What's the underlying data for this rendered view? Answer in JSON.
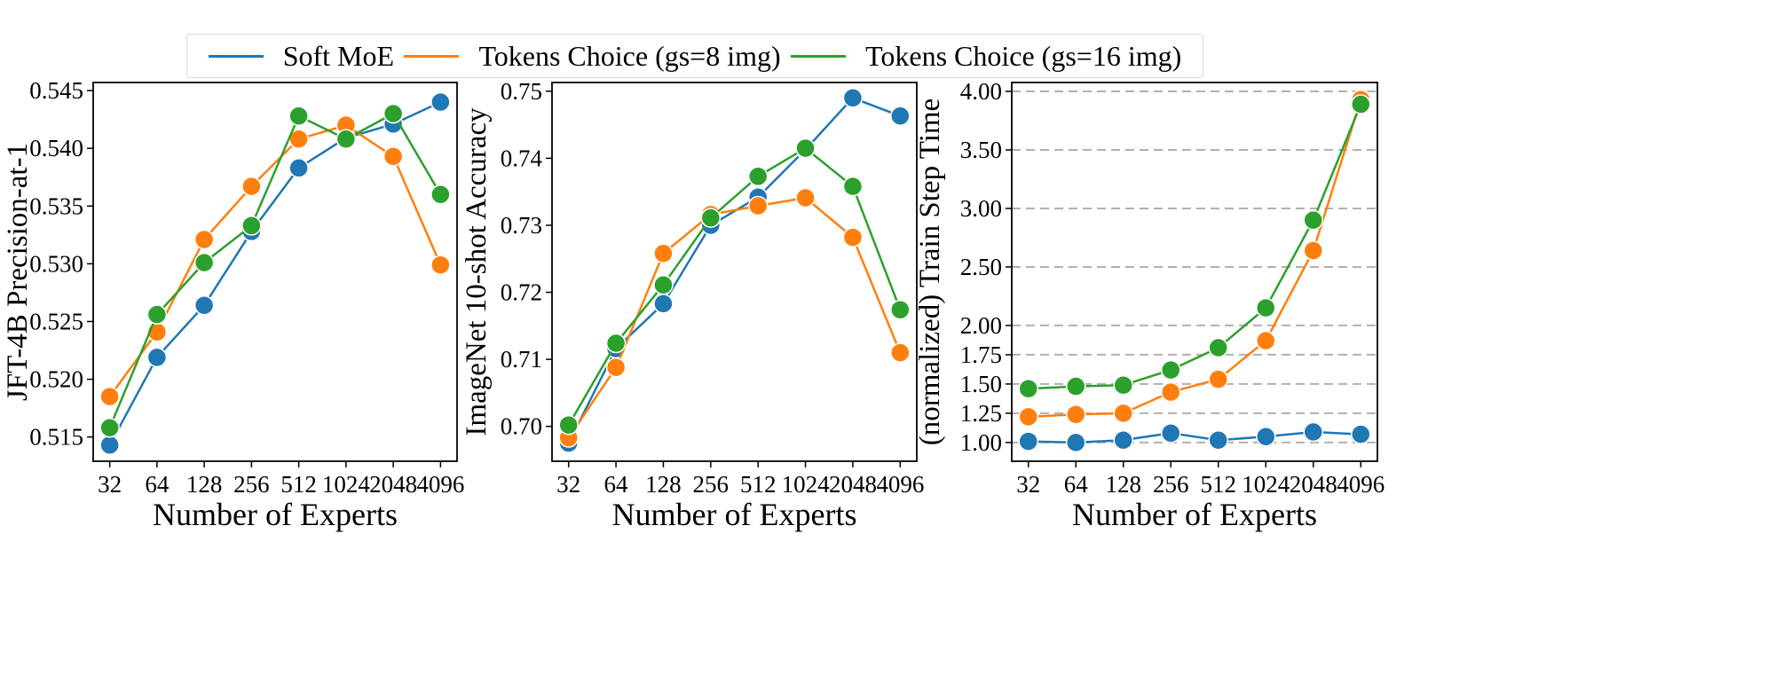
{
  "legend": {
    "placement": "top-center",
    "entries": [
      {
        "name": "Soft MoE",
        "color": "#1f77b4"
      },
      {
        "name": "Tokens Choice (gs=8 img)",
        "color": "#ff7f0e"
      },
      {
        "name": "Tokens Choice (gs=16 img)",
        "color": "#2ca02c"
      }
    ]
  },
  "chart_data": [
    {
      "type": "line",
      "xlabel": "Number of Experts",
      "ylabel": "JFT-4B Precision-at-1",
      "categories": [
        "32",
        "64",
        "128",
        "256",
        "512",
        "1024",
        "2048",
        "4096"
      ],
      "yticks": [
        "0.515",
        "0.520",
        "0.525",
        "0.530",
        "0.535",
        "0.540",
        "0.545"
      ],
      "ylim": [
        0.5129,
        0.5457
      ],
      "grid": false,
      "series": [
        {
          "name": "Soft MoE",
          "color": "#1f77b4",
          "values": [
            0.5143,
            0.5219,
            0.5264,
            0.5328,
            0.5383,
            0.5409,
            0.5421,
            0.544
          ]
        },
        {
          "name": "Tokens Choice (gs=8 img)",
          "color": "#ff7f0e",
          "values": [
            0.5185,
            0.5241,
            0.5321,
            0.5367,
            0.5408,
            0.542,
            0.5393,
            0.5299
          ]
        },
        {
          "name": "Tokens Choice (gs=16 img)",
          "color": "#2ca02c",
          "values": [
            0.5158,
            0.5256,
            0.5301,
            0.5333,
            0.5428,
            0.5408,
            0.543,
            0.536
          ]
        }
      ]
    },
    {
      "type": "line",
      "xlabel": "Number of Experts",
      "ylabel": "ImageNet 10-shot Accuracy",
      "categories": [
        "32",
        "64",
        "128",
        "256",
        "512",
        "1024",
        "2048",
        "4096"
      ],
      "yticks": [
        "0.70",
        "0.71",
        "0.72",
        "0.73",
        "0.74",
        "0.75"
      ],
      "ylim": [
        0.6948,
        0.7513
      ],
      "grid": false,
      "series": [
        {
          "name": "Soft MoE",
          "color": "#1f77b4",
          "values": [
            0.6975,
            0.7116,
            0.7183,
            0.73,
            0.7342,
            0.7413,
            0.749,
            0.7463
          ]
        },
        {
          "name": "Tokens Choice (gs=8 img)",
          "color": "#ff7f0e",
          "values": [
            0.6983,
            0.7088,
            0.7258,
            0.7316,
            0.7329,
            0.7341,
            0.7282,
            0.711
          ]
        },
        {
          "name": "Tokens Choice (gs=16 img)",
          "color": "#2ca02c",
          "values": [
            0.7002,
            0.7124,
            0.7211,
            0.7311,
            0.7373,
            0.7415,
            0.7358,
            0.7174
          ]
        }
      ]
    },
    {
      "type": "line",
      "xlabel": "Number of Experts",
      "ylabel": "(normalized) Train Step Time",
      "categories": [
        "32",
        "64",
        "128",
        "256",
        "512",
        "1024",
        "2048",
        "4096"
      ],
      "yticks": [
        "1.00",
        "1.25",
        "1.50",
        "1.75",
        "2.00",
        "2.50",
        "3.00",
        "3.50",
        "4.00"
      ],
      "ylim": [
        0.84,
        4.076
      ],
      "grid": true,
      "grid_style": "dashed horizontal",
      "series": [
        {
          "name": "Soft MoE",
          "color": "#1f77b4",
          "values": [
            1.01,
            1.0,
            1.02,
            1.08,
            1.02,
            1.05,
            1.09,
            1.07
          ]
        },
        {
          "name": "Tokens Choice (gs=8 img)",
          "color": "#ff7f0e",
          "values": [
            1.22,
            1.24,
            1.25,
            1.43,
            1.54,
            1.87,
            2.64,
            3.93
          ]
        },
        {
          "name": "Tokens Choice (gs=16 img)",
          "color": "#2ca02c",
          "values": [
            1.46,
            1.48,
            1.49,
            1.62,
            1.81,
            2.15,
            2.9,
            3.89
          ]
        }
      ]
    }
  ]
}
